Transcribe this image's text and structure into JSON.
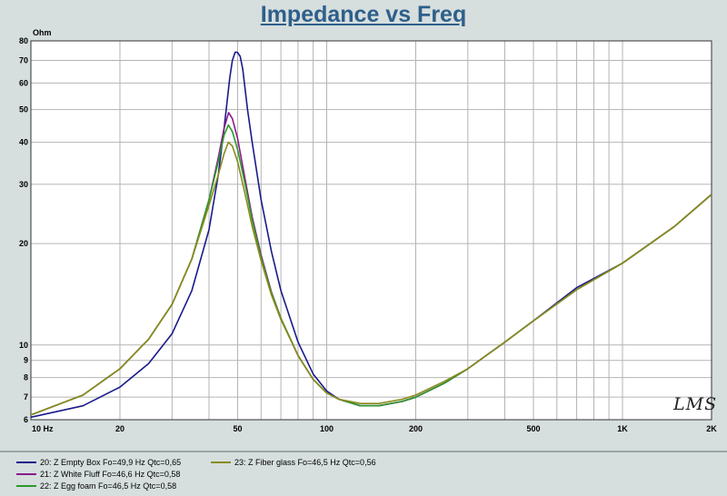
{
  "chart_data": {
    "type": "line",
    "title": "Impedance vs Freq",
    "ylabel": "Ohm",
    "xscale": "log",
    "yscale": "log",
    "xlim": [
      10,
      2000
    ],
    "ylim": [
      6,
      80
    ],
    "grid": true,
    "legend_position": "bottom",
    "x_ticks": [
      {
        "value": 10,
        "label": "10 Hz"
      },
      {
        "value": 20,
        "label": "20"
      },
      {
        "value": 50,
        "label": "50"
      },
      {
        "value": 100,
        "label": "100"
      },
      {
        "value": 200,
        "label": "200"
      },
      {
        "value": 500,
        "label": "500"
      },
      {
        "value": 1000,
        "label": "1K"
      },
      {
        "value": 2000,
        "label": "2K"
      }
    ],
    "x_gridlines": [
      10,
      20,
      30,
      40,
      50,
      60,
      70,
      80,
      90,
      100,
      200,
      300,
      400,
      500,
      600,
      700,
      800,
      900,
      1000,
      2000
    ],
    "y_ticks": [
      {
        "value": 6,
        "label": "6"
      },
      {
        "value": 7,
        "label": "7"
      },
      {
        "value": 8,
        "label": "8"
      },
      {
        "value": 9,
        "label": "9"
      },
      {
        "value": 10,
        "label": "10"
      },
      {
        "value": 20,
        "label": "20"
      },
      {
        "value": 30,
        "label": "30"
      },
      {
        "value": 40,
        "label": "40"
      },
      {
        "value": 50,
        "label": "50"
      },
      {
        "value": 60,
        "label": "60"
      },
      {
        "value": 70,
        "label": "70"
      },
      {
        "value": 80,
        "label": "80"
      }
    ],
    "series": [
      {
        "name": "20: Z Empty Box Fo=49,9 Hz Qtc=0,65",
        "color": "#1a1a8c",
        "x": [
          10,
          15,
          20,
          25,
          30,
          35,
          40,
          43,
          45,
          47,
          48,
          49,
          49.9,
          51,
          52,
          54,
          56,
          60,
          65,
          70,
          80,
          90,
          100,
          110,
          130,
          150,
          180,
          200,
          250,
          300,
          400,
          500,
          700,
          1000,
          1500,
          2000
        ],
        "y": [
          6.1,
          6.6,
          7.5,
          8.8,
          10.8,
          14.5,
          22,
          32,
          44,
          62,
          70,
          74,
          74,
          72,
          66,
          50,
          40,
          27,
          19,
          14.5,
          10.2,
          8.2,
          7.3,
          6.9,
          6.6,
          6.6,
          6.8,
          7.0,
          7.7,
          8.5,
          10.2,
          11.8,
          14.8,
          17.5,
          22.5,
          28
        ]
      },
      {
        "name": "21: Z White Fluff Fo=46,6 Hz Qtc=0,58",
        "color": "#8b1a8b",
        "x": [
          10,
          15,
          20,
          25,
          30,
          35,
          40,
          43,
          45,
          46.6,
          48,
          50,
          53,
          56,
          60,
          65,
          70,
          80,
          90,
          100,
          110,
          130,
          150,
          180,
          200,
          250,
          300,
          400,
          500,
          700,
          1000,
          1500,
          2000
        ],
        "y": [
          6.2,
          7.1,
          8.5,
          10.4,
          13.2,
          18,
          27,
          36,
          44,
          49,
          47,
          41,
          31,
          24,
          18.5,
          14.4,
          12,
          9.3,
          7.9,
          7.2,
          6.9,
          6.6,
          6.6,
          6.8,
          7.0,
          7.7,
          8.5,
          10.2,
          11.8,
          14.6,
          17.5,
          22.5,
          28
        ]
      },
      {
        "name": "22: Z Egg foam   Fo=46,5 Hz Qtc=0,58",
        "color": "#2a9a2a",
        "x": [
          10,
          15,
          20,
          25,
          30,
          35,
          40,
          43,
          45,
          46.5,
          48,
          50,
          53,
          56,
          60,
          65,
          70,
          80,
          90,
          100,
          110,
          130,
          150,
          180,
          200,
          250,
          300,
          400,
          500,
          700,
          1000,
          1500,
          2000
        ],
        "y": [
          6.2,
          7.1,
          8.5,
          10.4,
          13.2,
          18,
          27,
          35,
          42,
          45,
          43,
          38,
          30,
          23.5,
          18.2,
          14.3,
          12,
          9.3,
          7.9,
          7.2,
          6.9,
          6.6,
          6.6,
          6.8,
          7.0,
          7.7,
          8.5,
          10.2,
          11.8,
          14.6,
          17.5,
          22.5,
          28
        ]
      },
      {
        "name": "23: Z Fiber glass Fo=46,5 Hz Qtc=0,56",
        "color": "#8a8a1a",
        "x": [
          10,
          15,
          20,
          25,
          30,
          35,
          40,
          43,
          45,
          46.5,
          48,
          50,
          53,
          56,
          60,
          65,
          70,
          80,
          90,
          100,
          110,
          130,
          150,
          180,
          200,
          250,
          300,
          400,
          500,
          700,
          1000,
          1500,
          2000
        ],
        "y": [
          6.2,
          7.1,
          8.5,
          10.4,
          13.2,
          18,
          26,
          32,
          37,
          40,
          39,
          35,
          28,
          22.5,
          17.8,
          14.1,
          11.9,
          9.3,
          7.9,
          7.2,
          6.9,
          6.7,
          6.7,
          6.9,
          7.1,
          7.8,
          8.5,
          10.2,
          11.8,
          14.6,
          17.5,
          22.5,
          28
        ]
      }
    ]
  },
  "watermark": "LMS"
}
